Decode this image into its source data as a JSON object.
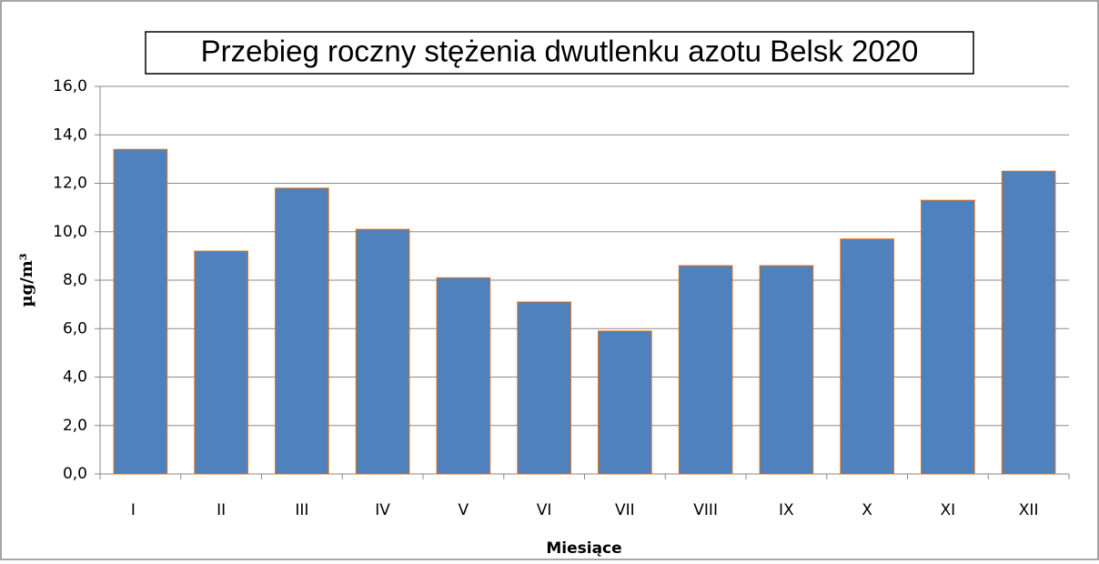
{
  "chart_data": {
    "type": "bar",
    "title": "Przebieg roczny stężenia dwutlenku azotu Belsk 2020",
    "x_label": "Miesiące",
    "y_label": "µg/m³",
    "categories": [
      "I",
      "II",
      "III",
      "IV",
      "V",
      "VI",
      "VII",
      "VIII",
      "IX",
      "X",
      "XI",
      "XII"
    ],
    "values": [
      13.4,
      9.2,
      11.8,
      10.1,
      8.1,
      7.1,
      5.9,
      8.6,
      8.6,
      9.7,
      11.3,
      12.5
    ],
    "color": "#4f81bd",
    "ylim": [
      0,
      16
    ],
    "yticks": [
      {
        "value": 0,
        "label": "0,0"
      },
      {
        "value": 2,
        "label": "2,0"
      },
      {
        "value": 4,
        "label": "4,0"
      },
      {
        "value": 6,
        "label": "6,0"
      },
      {
        "value": 8,
        "label": "8,0"
      },
      {
        "value": 10,
        "label": "10,0"
      },
      {
        "value": 12,
        "label": "12,0"
      },
      {
        "value": 14,
        "label": "14,0"
      },
      {
        "value": 16,
        "label": "16,0"
      }
    ],
    "grid": true
  }
}
